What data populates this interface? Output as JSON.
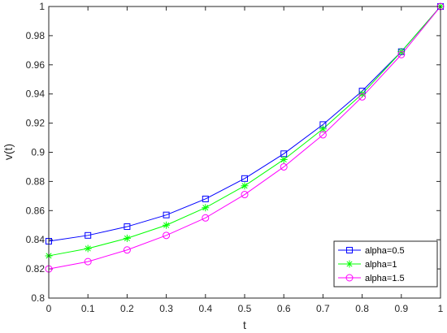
{
  "chart_data": {
    "type": "line",
    "title": "",
    "xlabel": "t",
    "ylabel": "v(t)",
    "xlim": [
      0,
      1
    ],
    "ylim": [
      0.8,
      1
    ],
    "x_ticks": [
      0,
      0.1,
      0.2,
      0.3,
      0.4,
      0.5,
      0.6,
      0.7,
      0.8,
      0.9,
      1
    ],
    "x_tick_labels": [
      "0",
      "0.1",
      "0.2",
      "0.3",
      "0.4",
      "0.5",
      "0.6",
      "0.7",
      "0.8",
      "0.9",
      "1"
    ],
    "y_ticks": [
      0.8,
      0.82,
      0.84,
      0.86,
      0.88,
      0.9,
      0.92,
      0.94,
      0.96,
      0.98,
      1
    ],
    "y_tick_labels": [
      "0.8",
      "0.82",
      "0.84",
      "0.86",
      "0.88",
      "0.9",
      "0.92",
      "0.94",
      "0.96",
      "0.98",
      "1"
    ],
    "grid": false,
    "legend_position": "bottom-right",
    "x": [
      0,
      0.1,
      0.2,
      0.3,
      0.4,
      0.5,
      0.6,
      0.7,
      0.8,
      0.9,
      1
    ],
    "series": [
      {
        "name": "alpha=0.5",
        "color": "#0000ff",
        "marker": "square",
        "values": [
          0.839,
          0.843,
          0.849,
          0.857,
          0.868,
          0.882,
          0.899,
          0.919,
          0.942,
          0.969,
          1.0
        ]
      },
      {
        "name": "alpha=1",
        "color": "#00ff00",
        "marker": "asterisk",
        "values": [
          0.829,
          0.834,
          0.841,
          0.85,
          0.862,
          0.877,
          0.895,
          0.916,
          0.94,
          0.969,
          1.0
        ]
      },
      {
        "name": "alpha=1.5",
        "color": "#ff00ff",
        "marker": "circle",
        "values": [
          0.82,
          0.825,
          0.833,
          0.843,
          0.855,
          0.871,
          0.89,
          0.912,
          0.938,
          0.967,
          1.0
        ]
      }
    ]
  }
}
